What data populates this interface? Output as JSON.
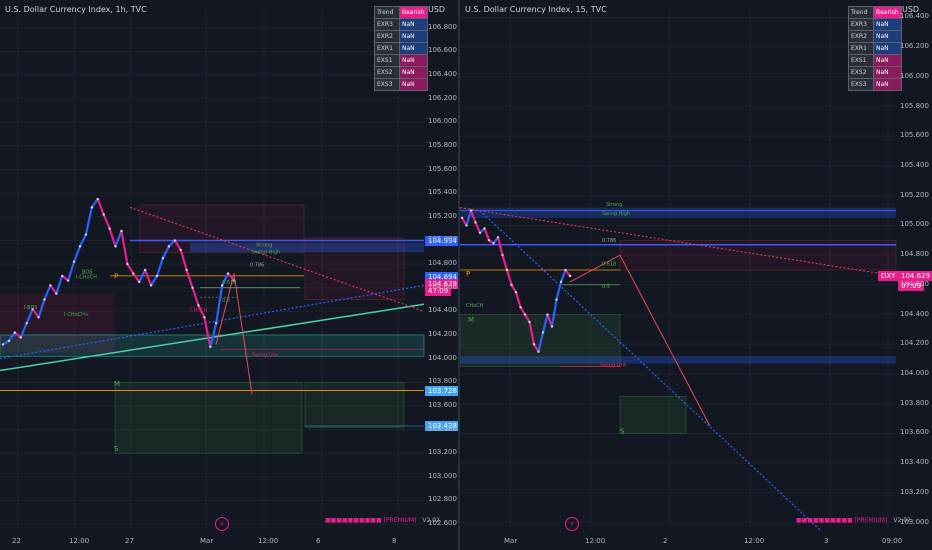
{
  "left": {
    "title": "U.S. Dollar Currency Index, 1h, TVC",
    "currency": "USD",
    "table": [
      {
        "k": "Trend",
        "v": "Bearish",
        "color": "#e91e8c"
      },
      {
        "k": "EXR3",
        "v": "NaN",
        "color": "#1e3d7d"
      },
      {
        "k": "EXR2",
        "v": "NaN",
        "color": "#1e3d7d"
      },
      {
        "k": "EXR1",
        "v": "NaN",
        "color": "#1e3d7d"
      },
      {
        "k": "EXS1",
        "v": "NaN",
        "color": "#8b1a5e"
      },
      {
        "k": "EXS2",
        "v": "NaN",
        "color": "#8b1a5e"
      },
      {
        "k": "EXS3",
        "v": "NaN",
        "color": "#8b1a5e"
      }
    ],
    "premium": "■■■■■■■■■■ [PREMIUM]",
    "version": "V2.02",
    "price_badges": [
      {
        "text": "104.994",
        "value": 104.994,
        "color": "#2962ff"
      },
      {
        "text": "104.694",
        "value": 104.694,
        "color": "#2962ff"
      },
      {
        "text": "104.634",
        "value": 104.634,
        "color": "#2962ff"
      },
      {
        "text": "104.629",
        "value": 104.629,
        "color": "#e91e8c"
      },
      {
        "text": "47:09",
        "value": 104.57,
        "color": "#e91e8c"
      },
      {
        "text": "103.728",
        "value": 103.728,
        "color": "#42a5f5"
      },
      {
        "text": "103.428",
        "value": 103.428,
        "color": "#42a5f5"
      }
    ],
    "chart_data": {
      "type": "line",
      "title": "U.S. Dollar Currency Index, 1h, TVC",
      "ylim": [
        102.55,
        106.95
      ],
      "y_ticks": [
        "106.800",
        "106.600",
        "106.400",
        "106.200",
        "106.000",
        "105.800",
        "105.600",
        "105.400",
        "105.200",
        "105.000",
        "104.800",
        "104.600",
        "104.400",
        "104.200",
        "104.000",
        "103.800",
        "103.600",
        "103.400",
        "103.200",
        "103.000",
        "102.800",
        "102.600"
      ],
      "x_ticks": [
        "22",
        "12:00",
        "27",
        "Mar",
        "12:00",
        "6",
        "8"
      ],
      "series": [
        {
          "values": [
            104.12,
            104.15,
            104.22,
            104.18,
            104.3,
            104.42,
            104.35,
            104.5,
            104.62,
            104.55,
            104.7,
            104.66,
            104.82,
            104.95,
            105.05,
            105.28,
            105.35,
            105.22,
            105.1,
            104.95,
            105.08,
            104.8,
            104.72,
            104.65,
            104.75,
            104.62,
            104.7,
            104.85,
            104.95,
            105.0,
            104.92,
            104.75,
            104.6,
            104.45,
            104.35,
            104.1,
            104.3,
            104.62,
            104.72,
            104.66
          ]
        }
      ],
      "annotations": [
        "Strong",
        "Swing High",
        "Swing Low",
        "0.786",
        "0.618",
        "0.5",
        "BOS",
        "I-BOS",
        "I-CHoCH",
        "I-CHoCH+",
        "CHoCH",
        "M",
        "P",
        "S"
      ]
    }
  },
  "right": {
    "title": "U.S. Dollar Currency Index, 15, TVC",
    "currency": "USD",
    "table": [
      {
        "k": "Trend",
        "v": "Bearish",
        "color": "#e91e8c"
      },
      {
        "k": "EXR3",
        "v": "NaN",
        "color": "#1e3d7d"
      },
      {
        "k": "EXR2",
        "v": "NaN",
        "color": "#1e3d7d"
      },
      {
        "k": "EXR1",
        "v": "NaN",
        "color": "#1e3d7d"
      },
      {
        "k": "EXS1",
        "v": "NaN",
        "color": "#8b1a5e"
      },
      {
        "k": "EXS2",
        "v": "NaN",
        "color": "#8b1a5e"
      },
      {
        "k": "EXS3",
        "v": "NaN",
        "color": "#8b1a5e"
      }
    ],
    "premium": "■■■■■■■■■■ [PREMIUM]",
    "version": "V2.02",
    "price_badges": [
      {
        "text": "DXY",
        "value": 104.66,
        "color": "#e91e8c"
      },
      {
        "text": "104.629",
        "value": 104.66,
        "color": "#e91e8c"
      },
      {
        "text": "07:09",
        "value": 104.595,
        "color": "#e91e8c"
      }
    ],
    "chart_data": {
      "type": "line",
      "title": "U.S. Dollar Currency Index, 15, TVC",
      "ylim": [
        102.95,
        106.45
      ],
      "y_ticks": [
        "106.400",
        "106.200",
        "106.000",
        "105.800",
        "105.600",
        "105.400",
        "105.200",
        "105.000",
        "104.800",
        "104.600",
        "104.400",
        "104.200",
        "104.000",
        "103.800",
        "103.600",
        "103.400",
        "103.200",
        "103.000"
      ],
      "x_ticks": [
        "Mar",
        "12:00",
        "2",
        "12:00",
        "3",
        "09:00"
      ],
      "series": [
        {
          "values": [
            105.05,
            105.0,
            105.1,
            105.02,
            104.95,
            104.98,
            104.9,
            104.88,
            104.92,
            104.8,
            104.7,
            104.6,
            104.55,
            104.45,
            104.4,
            104.35,
            104.2,
            104.15,
            104.28,
            104.4,
            104.32,
            104.5,
            104.62,
            104.7,
            104.66
          ]
        }
      ],
      "annotations": [
        "Strong",
        "Swing High",
        "Swing Low",
        "0.786",
        "0.618",
        "0.5",
        "CHoCH",
        "M",
        "P",
        "S"
      ]
    }
  }
}
